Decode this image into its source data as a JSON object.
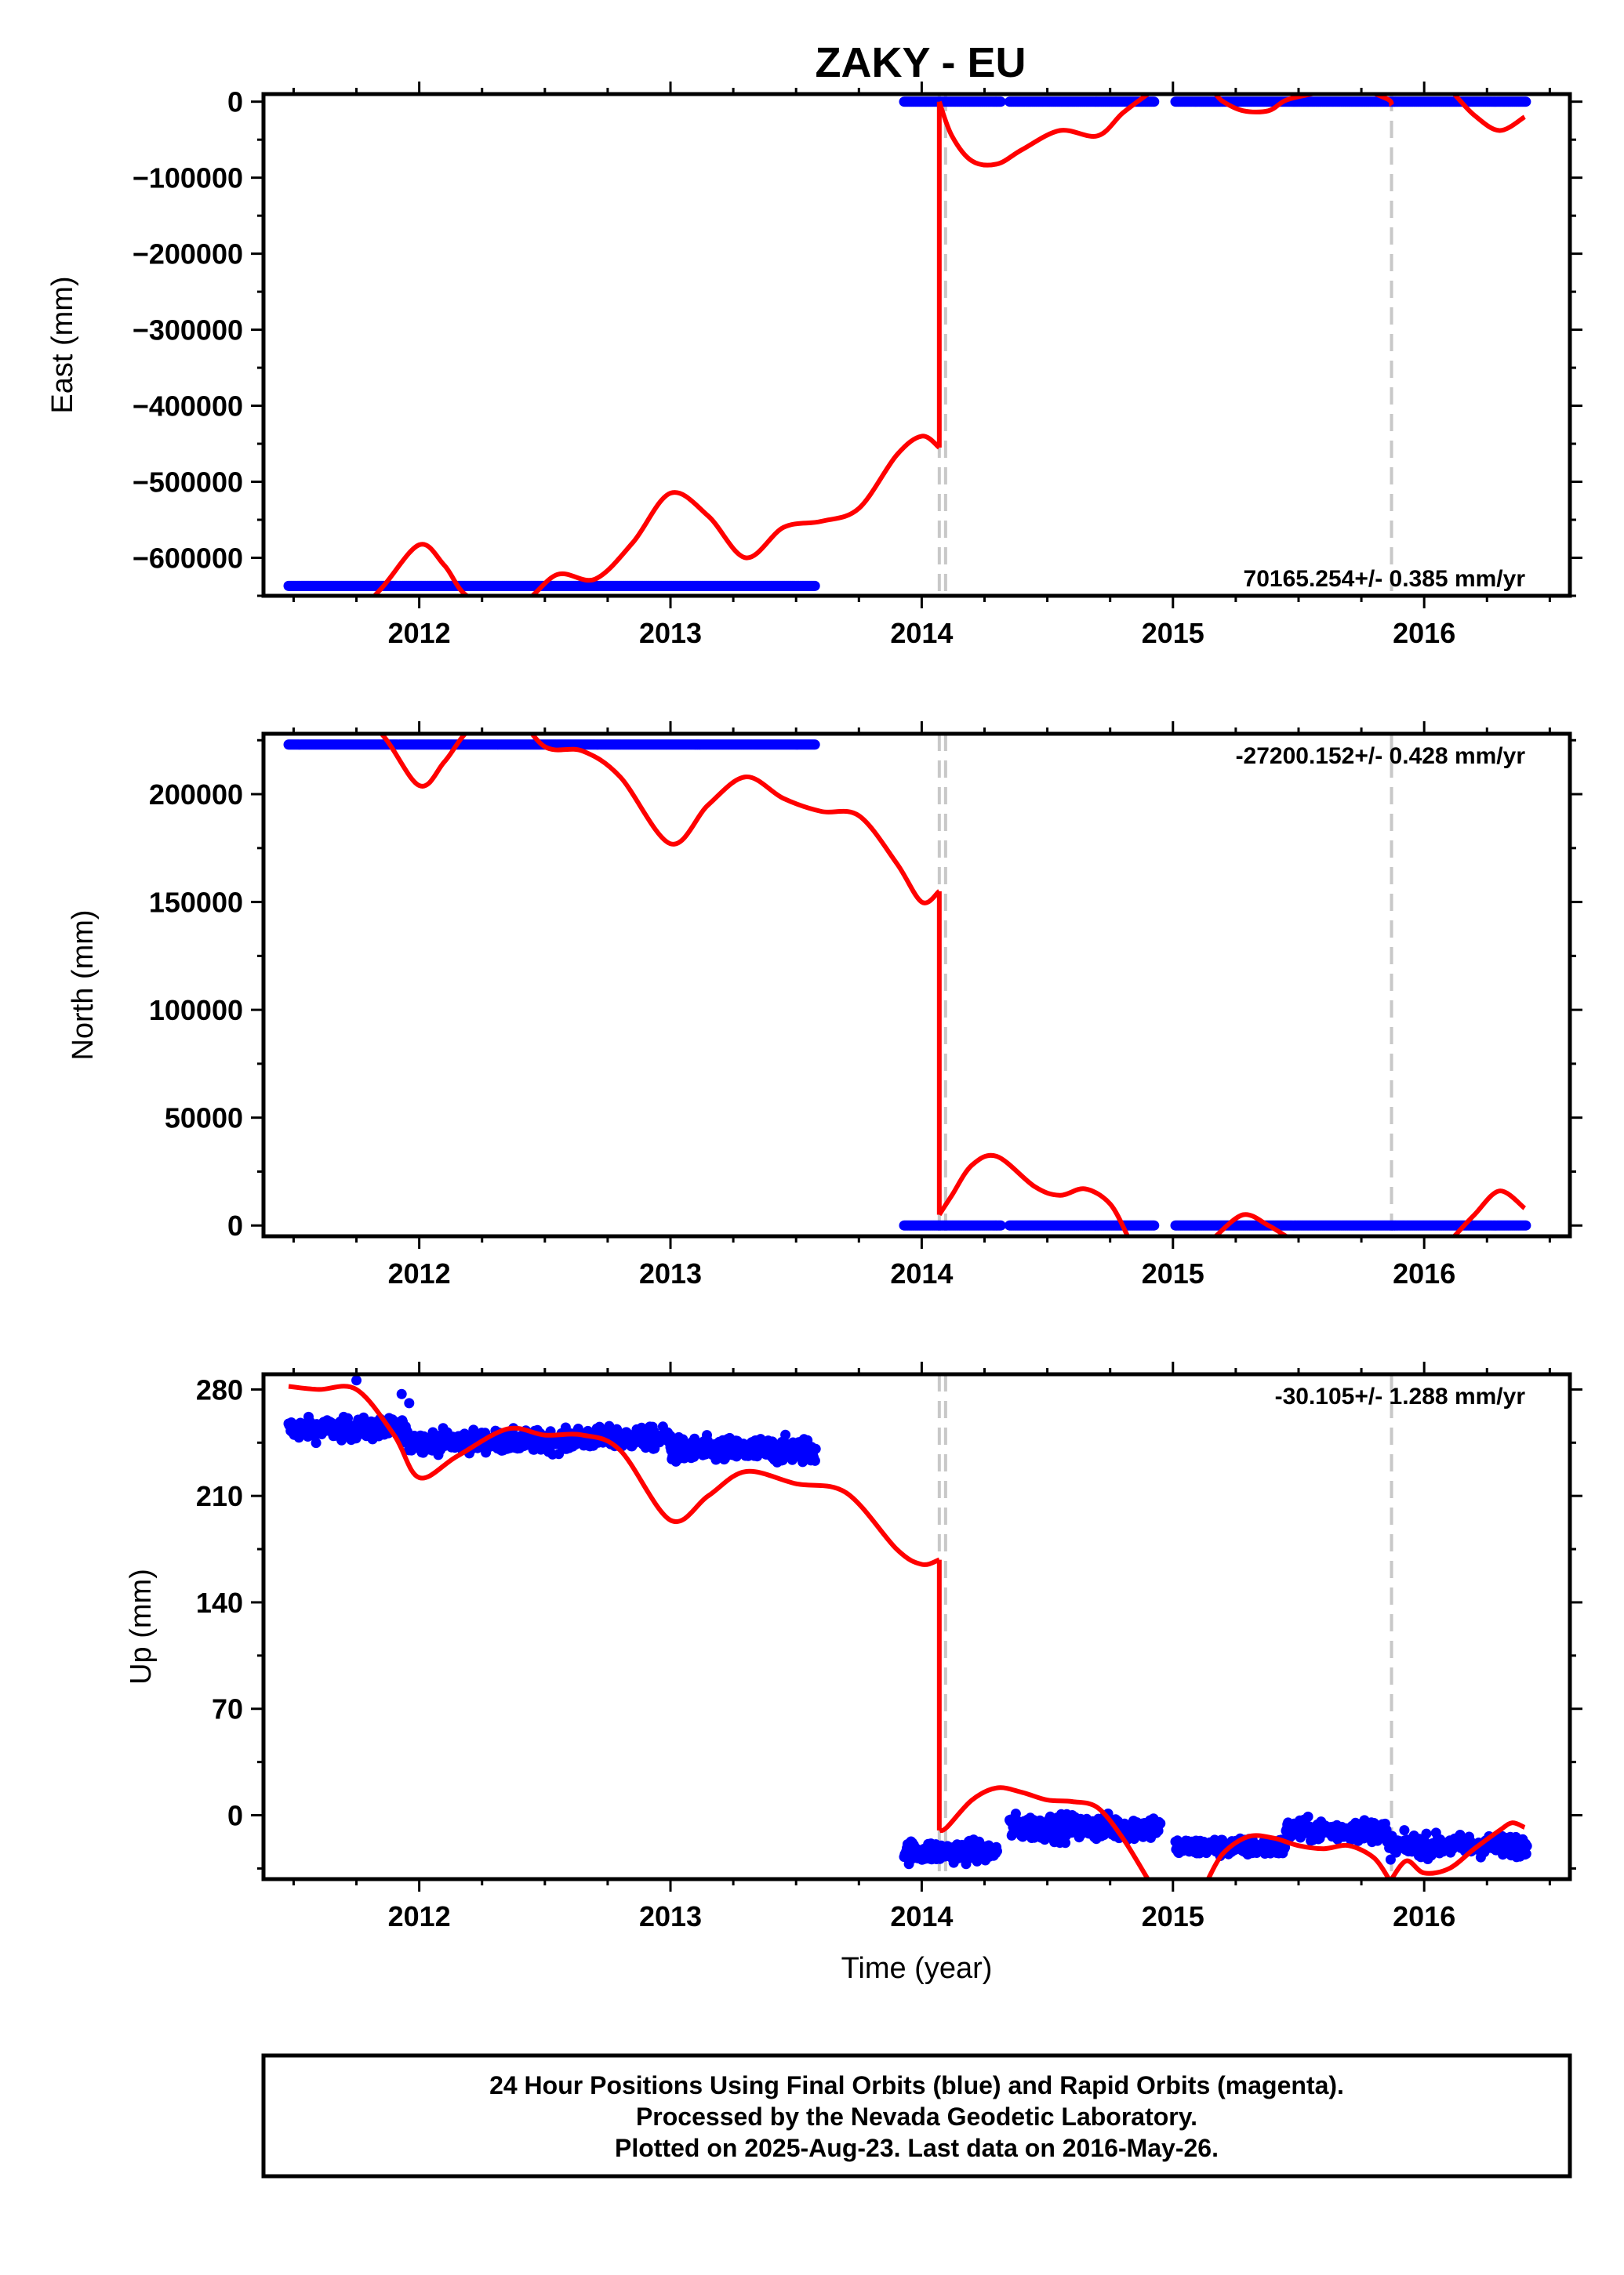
{
  "title": "ZAKY - EU",
  "colors": {
    "final": "#0000ff",
    "model": "#ff0000",
    "steps": "#c8c8c8",
    "frame": "#000000"
  },
  "footer": {
    "lines": [
      "24 Hour Positions Using Final Orbits (blue) and Rapid Orbits (magenta).",
      "Processed by the Nevada Geodetic Laboratory.",
      "Plotted on 2025-Aug-23. Last data on 2016-May-26."
    ]
  },
  "chart_data": [
    {
      "type": "scatter",
      "ylabel": "East (mm)",
      "xlabel": "",
      "xlim": [
        2011.38,
        2016.58
      ],
      "ylim": [
        -650000,
        10000
      ],
      "x_ticks": [
        2012,
        2013,
        2014,
        2015,
        2016
      ],
      "x_tick_labels": [
        "2012",
        "2013",
        "2014",
        "2015",
        "2016"
      ],
      "y_ticks": [
        0,
        -100000,
        -200000,
        -300000,
        -400000,
        -500000,
        -600000
      ],
      "y_tick_labels": [
        "0",
        "−100000",
        "−200000",
        "−300000",
        "−400000",
        "−500000",
        "−600000"
      ],
      "rate_label": "70165.254+/- 0.385 mm/yr",
      "step_lines": [
        2014.07,
        2014.095,
        2015.87
      ],
      "final_segments": [
        {
          "x_start": 2011.48,
          "x_end": 2013.58,
          "y": -637000,
          "noise": 0
        },
        {
          "x_start": 2013.93,
          "x_end": 2014.32,
          "y": 0,
          "noise": 0
        },
        {
          "x_start": 2014.35,
          "x_end": 2014.93,
          "y": 0,
          "noise": 0
        },
        {
          "x_start": 2015.01,
          "x_end": 2016.41,
          "y": 0,
          "noise": 0
        }
      ],
      "model_curves": [
        {
          "x": [
            2011.38,
            2011.5,
            2011.7,
            2011.85,
            2012.0,
            2012.1,
            2012.2,
            2012.4,
            2012.55,
            2012.7,
            2012.85,
            2013.0,
            2013.15,
            2013.3,
            2013.45,
            2013.6,
            2013.75,
            2013.9,
            2014.0,
            2014.07
          ],
          "y": [
            -700000,
            -730000,
            -690000,
            -640000,
            -583000,
            -610000,
            -652000,
            -660000,
            -622000,
            -628000,
            -580000,
            -515000,
            -545000,
            -600000,
            -560000,
            -552000,
            -535000,
            -465000,
            -440000,
            -455000
          ]
        },
        {
          "x": [
            2014.07,
            2014.12,
            2014.2,
            2014.3,
            2014.4,
            2014.55,
            2014.7,
            2014.8,
            2014.9
          ],
          "y": [
            0,
            -45000,
            -78000,
            -82000,
            -63000,
            -38000,
            -45000,
            -15000,
            10000
          ]
        },
        {
          "x": [
            2015.17,
            2015.2,
            2015.28,
            2015.38,
            2015.45,
            2015.55,
            2015.7,
            2015.85,
            2015.87
          ],
          "y": [
            10000,
            0,
            -12000,
            -12000,
            2000,
            10000,
            20000,
            4000,
            -5000
          ]
        },
        {
          "x": [
            2016.12,
            2016.2,
            2016.3,
            2016.4
          ],
          "y": [
            10000,
            -18000,
            -38000,
            -20000
          ]
        }
      ]
    },
    {
      "type": "scatter",
      "ylabel": "North (mm)",
      "xlabel": "",
      "xlim": [
        2011.38,
        2016.58
      ],
      "ylim": [
        -5000,
        228000
      ],
      "x_ticks": [
        2012,
        2013,
        2014,
        2015,
        2016
      ],
      "x_tick_labels": [
        "2012",
        "2013",
        "2014",
        "2015",
        "2016"
      ],
      "y_ticks": [
        0,
        50000,
        100000,
        150000,
        200000
      ],
      "y_tick_labels": [
        "0",
        "50000",
        "100000",
        "150000",
        "200000"
      ],
      "rate_label": "-27200.152+/- 0.428 mm/yr",
      "step_lines": [
        2014.07,
        2014.095,
        2015.87
      ],
      "final_segments": [
        {
          "x_start": 2011.48,
          "x_end": 2013.58,
          "y": 223000,
          "noise": 0
        },
        {
          "x_start": 2013.93,
          "x_end": 2014.32,
          "y": 0,
          "noise": 0
        },
        {
          "x_start": 2014.35,
          "x_end": 2014.93,
          "y": 0,
          "noise": 0
        },
        {
          "x_start": 2015.01,
          "x_end": 2016.41,
          "y": 0,
          "noise": 0
        }
      ],
      "model_curves": [
        {
          "x": [
            2011.38,
            2011.65,
            2011.85,
            2012.0,
            2012.1,
            2012.2,
            2012.35,
            2012.5,
            2012.65,
            2012.8,
            2013.0,
            2013.15,
            2013.3,
            2013.45,
            2013.6,
            2013.75,
            2013.9,
            2014.0,
            2014.07
          ],
          "y": [
            260000,
            250000,
            228000,
            204000,
            215000,
            230000,
            240000,
            222000,
            220000,
            208000,
            177000,
            195000,
            208000,
            198000,
            192000,
            190000,
            168000,
            150000,
            155000
          ]
        },
        {
          "x": [
            2014.07,
            2014.12,
            2014.2,
            2014.3,
            2014.45,
            2014.55,
            2014.65,
            2014.75,
            2014.82
          ],
          "y": [
            5000,
            14000,
            28000,
            32000,
            18000,
            14000,
            17000,
            10000,
            -5000
          ]
        },
        {
          "x": [
            2015.17,
            2015.28,
            2015.38,
            2015.45
          ],
          "y": [
            -5000,
            5000,
            0,
            -5000
          ]
        },
        {
          "x": [
            2016.12,
            2016.2,
            2016.3,
            2016.4
          ],
          "y": [
            -5000,
            5000,
            16000,
            8000
          ]
        }
      ]
    },
    {
      "type": "scatter",
      "ylabel": "Up (mm)",
      "xlabel": "Time (year)",
      "xlim": [
        2011.38,
        2016.58
      ],
      "ylim": [
        -42,
        290
      ],
      "x_ticks": [
        2012,
        2013,
        2014,
        2015,
        2016
      ],
      "x_tick_labels": [
        "2012",
        "2013",
        "2014",
        "2015",
        "2016"
      ],
      "y_ticks": [
        0,
        70,
        140,
        210,
        280
      ],
      "y_tick_labels": [
        "0",
        "70",
        "140",
        "210",
        "280"
      ],
      "rate_label": "-30.105+/- 1.288 mm/yr",
      "step_lines": [
        2014.07,
        2014.095,
        2015.87
      ],
      "final_segments": [
        {
          "x_start": 2011.48,
          "x_end": 2011.95,
          "y": 254,
          "noise": 6
        },
        {
          "x_start": 2011.95,
          "x_end": 2012.6,
          "y": 246,
          "noise": 6
        },
        {
          "x_start": 2012.6,
          "x_end": 2013.0,
          "y": 248,
          "noise": 6
        },
        {
          "x_start": 2013.0,
          "x_end": 2013.58,
          "y": 240,
          "noise": 7
        },
        {
          "x_start": 2013.93,
          "x_end": 2014.3,
          "y": -24,
          "noise": 6
        },
        {
          "x_start": 2014.35,
          "x_end": 2014.95,
          "y": -8,
          "noise": 7
        },
        {
          "x_start": 2015.01,
          "x_end": 2015.45,
          "y": -21,
          "noise": 5
        },
        {
          "x_start": 2015.45,
          "x_end": 2015.85,
          "y": -10,
          "noise": 6
        },
        {
          "x_start": 2015.85,
          "x_end": 2016.41,
          "y": -20,
          "noise": 6
        }
      ],
      "outliers": [
        {
          "x": 2011.75,
          "y": 286
        },
        {
          "x": 2011.93,
          "y": 277
        },
        {
          "x": 2011.96,
          "y": 271
        }
      ],
      "model_curves": [
        {
          "x": [
            2011.48,
            2011.6,
            2011.75,
            2011.9,
            2012.0,
            2012.15,
            2012.35,
            2012.5,
            2012.65,
            2012.8,
            2013.0,
            2013.15,
            2013.3,
            2013.5,
            2013.7,
            2013.9,
            2014.0,
            2014.07
          ],
          "y": [
            282,
            280,
            280,
            250,
            222,
            236,
            254,
            250,
            250,
            240,
            194,
            210,
            226,
            218,
            212,
            175,
            165,
            168
          ]
        },
        {
          "x": [
            2014.07,
            2014.1,
            2014.2,
            2014.3,
            2014.4,
            2014.5,
            2014.6,
            2014.7,
            2014.8,
            2014.9
          ],
          "y": [
            -10,
            -8,
            10,
            18,
            15,
            10,
            9,
            5,
            -15,
            -42
          ]
        },
        {
          "x": [
            2015.14,
            2015.2,
            2015.3,
            2015.4,
            2015.5,
            2015.6,
            2015.7,
            2015.8,
            2015.86
          ],
          "y": [
            -42,
            -25,
            -14,
            -15,
            -20,
            -22,
            -20,
            -28,
            -42
          ]
        },
        {
          "x": [
            2015.87,
            2015.93,
            2016.0,
            2016.1,
            2016.2,
            2016.3,
            2016.35,
            2016.4
          ],
          "y": [
            -42,
            -30,
            -38,
            -35,
            -22,
            -10,
            -5,
            -8
          ]
        }
      ]
    }
  ]
}
